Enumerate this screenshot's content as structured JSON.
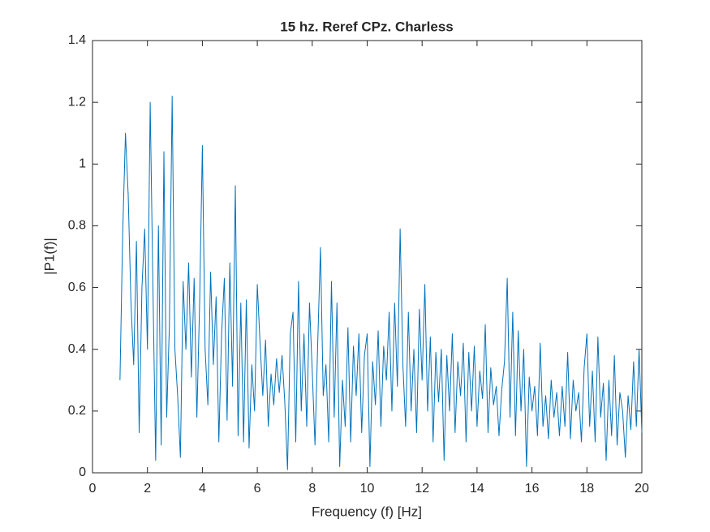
{
  "chart_data": {
    "type": "line",
    "title": "15 hz. Reref CPz. Charless",
    "xlabel": "Frequency (f) [Hz]",
    "ylabel": "|P1(f)|",
    "color": "#0072bd",
    "grid": false,
    "xlim": [
      0,
      20
    ],
    "xticks": [
      0,
      2,
      4,
      6,
      8,
      10,
      12,
      14,
      16,
      18,
      20
    ],
    "ylim": [
      0,
      1.4
    ],
    "yticks": [
      0,
      0.2,
      0.4,
      0.6,
      0.8,
      1,
      1.2,
      1.4
    ],
    "x": [
      1,
      1.1,
      1.2,
      1.3,
      1.4,
      1.5,
      1.6,
      1.7,
      1.8,
      1.9,
      2,
      2.1,
      2.2,
      2.3,
      2.4,
      2.5,
      2.6,
      2.7,
      2.8,
      2.9,
      3,
      3.1,
      3.2,
      3.3,
      3.4,
      3.5,
      3.6,
      3.7,
      3.8,
      3.9,
      4,
      4.1,
      4.2,
      4.3,
      4.4,
      4.5,
      4.6,
      4.7,
      4.8,
      4.9,
      5,
      5.1,
      5.2,
      5.3,
      5.4,
      5.5,
      5.6,
      5.7,
      5.8,
      5.9,
      6,
      6.1,
      6.2,
      6.3,
      6.4,
      6.5,
      6.6,
      6.7,
      6.8,
      6.9,
      7,
      7.1,
      7.2,
      7.3,
      7.4,
      7.5,
      7.6,
      7.7,
      7.8,
      7.9,
      8,
      8.1,
      8.2,
      8.3,
      8.4,
      8.5,
      8.6,
      8.7,
      8.8,
      8.9,
      9,
      9.1,
      9.2,
      9.3,
      9.4,
      9.5,
      9.6,
      9.7,
      9.8,
      9.9,
      10,
      10.1,
      10.2,
      10.3,
      10.4,
      10.5,
      10.6,
      10.7,
      10.8,
      10.9,
      11,
      11.1,
      11.2,
      11.3,
      11.4,
      11.5,
      11.6,
      11.7,
      11.8,
      11.9,
      12,
      12.1,
      12.2,
      12.3,
      12.4,
      12.5,
      12.6,
      12.7,
      12.8,
      12.9,
      13,
      13.1,
      13.2,
      13.3,
      13.4,
      13.5,
      13.6,
      13.7,
      13.8,
      13.9,
      14,
      14.1,
      14.2,
      14.3,
      14.4,
      14.5,
      14.6,
      14.7,
      14.8,
      14.9,
      15,
      15.1,
      15.2,
      15.3,
      15.4,
      15.5,
      15.6,
      15.7,
      15.8,
      15.9,
      16,
      16.1,
      16.2,
      16.3,
      16.4,
      16.5,
      16.6,
      16.7,
      16.8,
      16.9,
      17,
      17.1,
      17.2,
      17.3,
      17.4,
      17.5,
      17.6,
      17.7,
      17.8,
      17.9,
      18,
      18.1,
      18.2,
      18.3,
      18.4,
      18.5,
      18.6,
      18.7,
      18.8,
      18.9,
      19,
      19.1,
      19.2,
      19.3,
      19.4,
      19.5,
      19.6,
      19.7,
      19.8,
      19.9,
      20
    ],
    "values": [
      0.3,
      0.78,
      1.1,
      0.9,
      0.55,
      0.35,
      0.75,
      0.13,
      0.6,
      0.79,
      0.4,
      1.2,
      0.6,
      0.04,
      0.8,
      0.09,
      1.04,
      0.18,
      0.48,
      1.22,
      0.4,
      0.25,
      0.05,
      0.62,
      0.4,
      0.68,
      0.31,
      0.63,
      0.18,
      0.55,
      1.06,
      0.4,
      0.22,
      0.65,
      0.35,
      0.57,
      0.1,
      0.45,
      0.63,
      0.17,
      0.68,
      0.28,
      0.93,
      0.12,
      0.55,
      0.1,
      0.56,
      0.08,
      0.35,
      0.2,
      0.61,
      0.42,
      0.25,
      0.43,
      0.15,
      0.32,
      0.22,
      0.37,
      0.26,
      0.38,
      0.23,
      0.01,
      0.45,
      0.52,
      0.1,
      0.62,
      0.2,
      0.45,
      0.15,
      0.55,
      0.33,
      0.09,
      0.42,
      0.73,
      0.25,
      0.35,
      0.1,
      0.62,
      0.18,
      0.55,
      0.02,
      0.3,
      0.15,
      0.47,
      0.1,
      0.41,
      0.25,
      0.45,
      0.13,
      0.38,
      0.45,
      0.02,
      0.36,
      0.22,
      0.46,
      0.15,
      0.41,
      0.3,
      0.52,
      0.2,
      0.55,
      0.28,
      0.79,
      0.35,
      0.15,
      0.52,
      0.2,
      0.4,
      0.13,
      0.53,
      0.3,
      0.61,
      0.2,
      0.44,
      0.1,
      0.39,
      0.23,
      0.4,
      0.04,
      0.38,
      0.2,
      0.45,
      0.13,
      0.36,
      0.25,
      0.42,
      0.1,
      0.39,
      0.2,
      0.41,
      0.15,
      0.33,
      0.24,
      0.48,
      0.13,
      0.34,
      0.22,
      0.28,
      0.12,
      0.27,
      0.36,
      0.63,
      0.18,
      0.52,
      0.12,
      0.46,
      0.2,
      0.4,
      0.02,
      0.31,
      0.2,
      0.28,
      0.12,
      0.42,
      0.15,
      0.25,
      0.11,
      0.3,
      0.18,
      0.26,
      0.12,
      0.28,
      0.15,
      0.39,
      0.11,
      0.3,
      0.2,
      0.26,
      0.1,
      0.34,
      0.45,
      0.15,
      0.33,
      0.1,
      0.44,
      0.18,
      0.29,
      0.04,
      0.3,
      0.12,
      0.38,
      0.09,
      0.26,
      0.2,
      0.05,
      0.25,
      0.14,
      0.36,
      0.15,
      0.4,
      0.13
    ]
  }
}
